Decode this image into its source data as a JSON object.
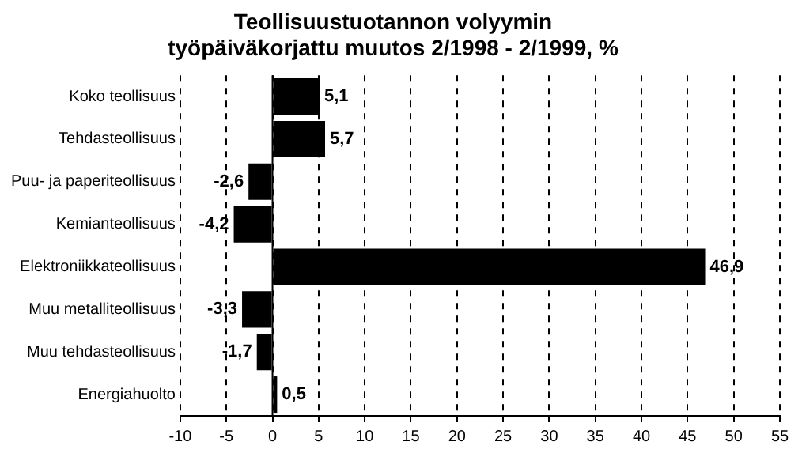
{
  "chart_data": {
    "type": "bar",
    "orientation": "horizontal",
    "title": "Teollisuustuotannon volyymin",
    "subtitle": "työpäiväkorjattu muutos 2/1998 - 2/1999, %",
    "categories": [
      "Koko teollisuus",
      "Tehdasteollisuus",
      "Puu- ja paperiteollisuus",
      "Kemianteollisuus",
      "Elektroniikkateollisuus",
      "Muu metalliteollisuus",
      "Muu tehdasteollisuus",
      "Energiahuolto"
    ],
    "values": [
      5.1,
      5.7,
      -2.6,
      -4.2,
      46.9,
      -3.3,
      -1.7,
      0.5
    ],
    "value_labels": [
      "5,1",
      "5,7",
      "-2,6",
      "-4,2",
      "46,9",
      "-3,3",
      "-1,7",
      "0,5"
    ],
    "color": "#000000",
    "xlim": [
      -10,
      55
    ],
    "xticks": [
      -10,
      -5,
      0,
      5,
      10,
      15,
      20,
      25,
      30,
      35,
      40,
      45,
      50,
      55
    ],
    "grid": "x",
    "legend": false
  }
}
